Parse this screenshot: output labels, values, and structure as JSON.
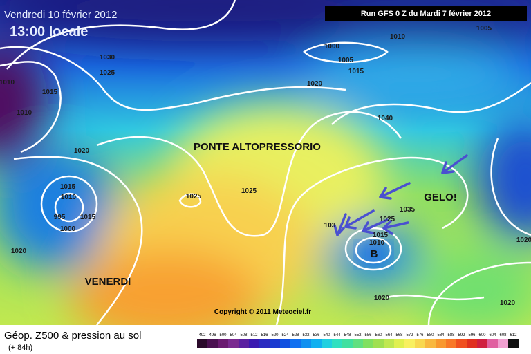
{
  "header": {
    "date": "Vendredi 10 février 2012",
    "time": "13:00 locale",
    "run": "Run GFS 0 Z du Mardi 7 février 2012"
  },
  "annotations": {
    "ridge": "PONTE ALTOPRESSORIO",
    "friday": "VENERDI",
    "frost": "GELO!",
    "low": "B"
  },
  "isobars": [
    "1010",
    "1010",
    "1015",
    "1030",
    "1025",
    "1000",
    "1005",
    "1010",
    "1005",
    "1015",
    "1020",
    "1040",
    "1020",
    "1025",
    "1025",
    "1015",
    "1010",
    "995",
    "1000",
    "1015",
    "1020",
    "1035",
    "1025",
    "1015",
    "1010",
    "1020",
    "1020",
    "1020",
    "103"
  ],
  "copyright": "Copyright © 2011 Meteociel.fr",
  "footer": {
    "title": "Géop. Z500 & pression au sol",
    "lead": "(+ 84h)"
  },
  "legend": {
    "values": [
      492,
      496,
      500,
      504,
      508,
      512,
      516,
      520,
      524,
      528,
      532,
      536,
      540,
      544,
      548,
      552,
      556,
      560,
      564,
      568,
      572,
      576,
      580,
      584,
      588,
      592,
      596,
      600,
      604,
      608,
      612
    ],
    "colors": [
      "#2a0a2a",
      "#4a1050",
      "#6a1a70",
      "#7a2a90",
      "#5a20a0",
      "#3a1ab0",
      "#2a2ac0",
      "#1a3ad0",
      "#1050e0",
      "#1070f0",
      "#1090f0",
      "#10b0f0",
      "#20d0e0",
      "#30e0c0",
      "#40e0a0",
      "#60e080",
      "#80e060",
      "#a0e050",
      "#c0e850",
      "#e0f050",
      "#f8f060",
      "#f8d850",
      "#f8b840",
      "#f89830",
      "#f87828",
      "#f05020",
      "#e03020",
      "#d02040",
      "#e060a0",
      "#f0a0d0",
      "#101010"
    ]
  }
}
